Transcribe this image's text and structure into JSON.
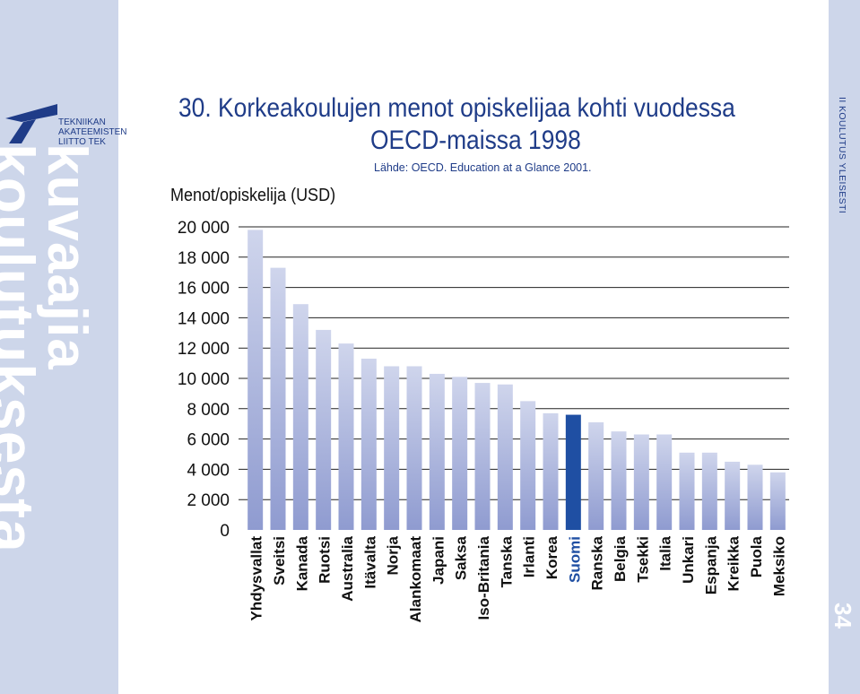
{
  "header": {
    "title_line1": "30. Korkeakoulujen menot opiskelijaa kohti vuodessa",
    "title_line2": "OECD-maissa 1998",
    "source": "Lähde: OECD. Education at a Glance 2001."
  },
  "branding": {
    "logo_line1": "TEKNIIKAN",
    "logo_line2": "AKATEEMISTEN",
    "logo_line3": "LIITTO TEK",
    "vertical_word1": "kuvaajia",
    "vertical_word2": "koulutuksesta",
    "side_label": "II  KOULUTUS YLEISESTI",
    "page_number": "34"
  },
  "colors": {
    "side_strip": "#cdd6ea",
    "title": "#1f3c88",
    "bar_light": "#cfd5ec",
    "bar_dark": "#8f9bd0",
    "highlight_bar": "#1f4fa3",
    "highlight_label": "#1f4fa3"
  },
  "chart_data": {
    "type": "bar",
    "ylabel": "Menot/opiskelija (USD)",
    "ylim": [
      0,
      20000
    ],
    "yticks": [
      {
        "value": 0,
        "label": "0"
      },
      {
        "value": 2000,
        "label": "2 000"
      },
      {
        "value": 4000,
        "label": "4 000"
      },
      {
        "value": 6000,
        "label": "6 000"
      },
      {
        "value": 8000,
        "label": "8 000"
      },
      {
        "value": 10000,
        "label": "10 000"
      },
      {
        "value": 12000,
        "label": "12 000"
      },
      {
        "value": 14000,
        "label": "14 000"
      },
      {
        "value": 16000,
        "label": "16 000"
      },
      {
        "value": 18000,
        "label": "18 000"
      },
      {
        "value": 20000,
        "label": "20 000"
      }
    ],
    "grid": true,
    "highlight": "Suomi",
    "categories": [
      "Yhdysvallat",
      "Sveitsi",
      "Kanada",
      "Ruotsi",
      "Australia",
      "Itävalta",
      "Norja",
      "Alankomaat",
      "Japani",
      "Saksa",
      "Iso-Britania",
      "Tanska",
      "Irlanti",
      "Korea",
      "Suomi",
      "Ranska",
      "Belgia",
      "Tsekki",
      "Italia",
      "Unkari",
      "Espanja",
      "Kreikka",
      "Puola",
      "Meksiko"
    ],
    "values": [
      19800,
      17300,
      14900,
      13200,
      12300,
      11300,
      10800,
      10800,
      10300,
      10100,
      9700,
      9600,
      8500,
      7700,
      7600,
      7100,
      6500,
      6300,
      6300,
      5100,
      5100,
      4500,
      4300,
      3800
    ]
  }
}
